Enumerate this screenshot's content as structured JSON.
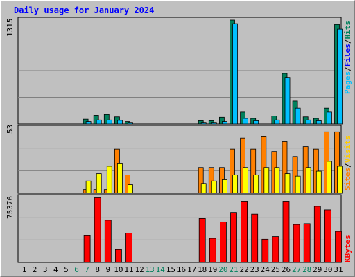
{
  "chart_data": {
    "type": "bar",
    "title": "Daily usage for January 2024",
    "x": [
      "1",
      "2",
      "3",
      "4",
      "5",
      "6",
      "7",
      "8",
      "9",
      "10",
      "11",
      "12",
      "13",
      "14",
      "15",
      "16",
      "17",
      "18",
      "19",
      "20",
      "21",
      "22",
      "23",
      "24",
      "25",
      "26",
      "27",
      "28",
      "29",
      "30",
      "31"
    ],
    "weekend_days": [
      "6",
      "7",
      "13",
      "14",
      "20",
      "21",
      "27",
      "28"
    ],
    "grid": true,
    "panels": [
      {
        "id": "hits",
        "axis_max_label": "1315",
        "ylim": [
          0,
          1315
        ],
        "legend": [
          "Pages",
          "Files",
          "Hits"
        ],
        "series": [
          {
            "name": "Hits",
            "color": "#00805c",
            "values": [
              0,
              0,
              0,
              0,
              0,
              0,
              60,
              110,
              120,
              90,
              30,
              0,
              0,
              0,
              0,
              0,
              0,
              40,
              40,
              85,
              1315,
              150,
              70,
              0,
              100,
              640,
              290,
              90,
              70,
              200,
              1260
            ]
          },
          {
            "name": "Files",
            "color": "#00c0ff",
            "values": [
              0,
              0,
              0,
              0,
              0,
              0,
              30,
              50,
              50,
              45,
              20,
              0,
              0,
              0,
              0,
              0,
              0,
              20,
              20,
              30,
              1270,
              70,
              40,
              0,
              50,
              590,
              200,
              50,
              40,
              150,
              1200
            ]
          },
          {
            "name": "Pages",
            "color": "#00ffff",
            "values": [
              0,
              0,
              0,
              0,
              0,
              0,
              0,
              0,
              0,
              0,
              0,
              0,
              0,
              0,
              0,
              0,
              0,
              0,
              0,
              0,
              0,
              0,
              0,
              0,
              0,
              0,
              0,
              0,
              0,
              0,
              0
            ]
          }
        ]
      },
      {
        "id": "visits",
        "axis_max_label": "53",
        "ylim": [
          0,
          53
        ],
        "legend": [
          "Sites",
          "Visits"
        ],
        "series": [
          {
            "name": "Visits",
            "color": "#ff8000",
            "values": [
              0,
              0,
              0,
              0,
              0,
              0,
              3,
              3,
              3,
              36,
              15,
              0,
              0,
              0,
              0,
              0,
              0,
              21,
              21,
              21,
              36,
              45,
              36,
              46,
              34,
              42,
              30,
              38,
              36,
              50,
              50
            ]
          },
          {
            "name": "Sites",
            "color": "#ffff00",
            "values": [
              0,
              0,
              0,
              0,
              0,
              0,
              10,
              16,
              22,
              24,
              7,
              0,
              0,
              0,
              0,
              0,
              0,
              8,
              10,
              11,
              15,
              21,
              15,
              21,
              21,
              16,
              14,
              21,
              18,
              26,
              22
            ]
          }
        ]
      },
      {
        "id": "kbytes",
        "axis_max_label": "75376",
        "ylim": [
          0,
          75376
        ],
        "legend": [
          "KBytes"
        ],
        "series": [
          {
            "name": "KBytes",
            "color": "#ff0000",
            "values": [
              0,
              0,
              0,
              0,
              0,
              0,
              31000,
              75000,
              49000,
              15000,
              34000,
              0,
              0,
              0,
              0,
              0,
              0,
              51000,
              28000,
              47000,
              58000,
              71000,
              56000,
              27000,
              30000,
              71000,
              44000,
              45000,
              65000,
              61000,
              36000
            ]
          }
        ]
      }
    ],
    "colors": {
      "background": "#c0c0c0",
      "border_light": "#ffffff",
      "border_dark": "#808080",
      "frame": "#000000",
      "title_text": "#0000ff",
      "day_text": "#000000",
      "weekend_text": "#00805c",
      "legend_pages": "#00c0ff",
      "legend_files": "#0000ff",
      "legend_hits": "#00805c",
      "legend_sites": "#ff8000",
      "legend_visits": "#ffcc00",
      "legend_kbytes": "#ff0000"
    }
  }
}
